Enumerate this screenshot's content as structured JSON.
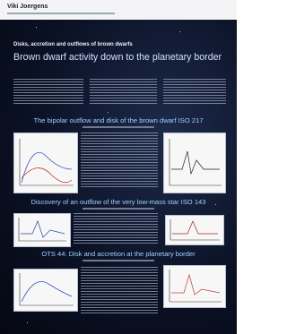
{
  "header": {
    "author": "Viki Joergens"
  },
  "poster": {
    "kicker": "Disks, accretion and outflows of brown dwarfs",
    "title": "Brown dwarf activity down to the planetary border",
    "sections": [
      {
        "title": "The bipolar outflow and disk of the brown dwarf ISO 217"
      },
      {
        "title": "Discovery of an outflow of the very low-mass star ISO 143"
      },
      {
        "title": "OTS 44: Disk and accretion at the planetary border"
      }
    ]
  }
}
